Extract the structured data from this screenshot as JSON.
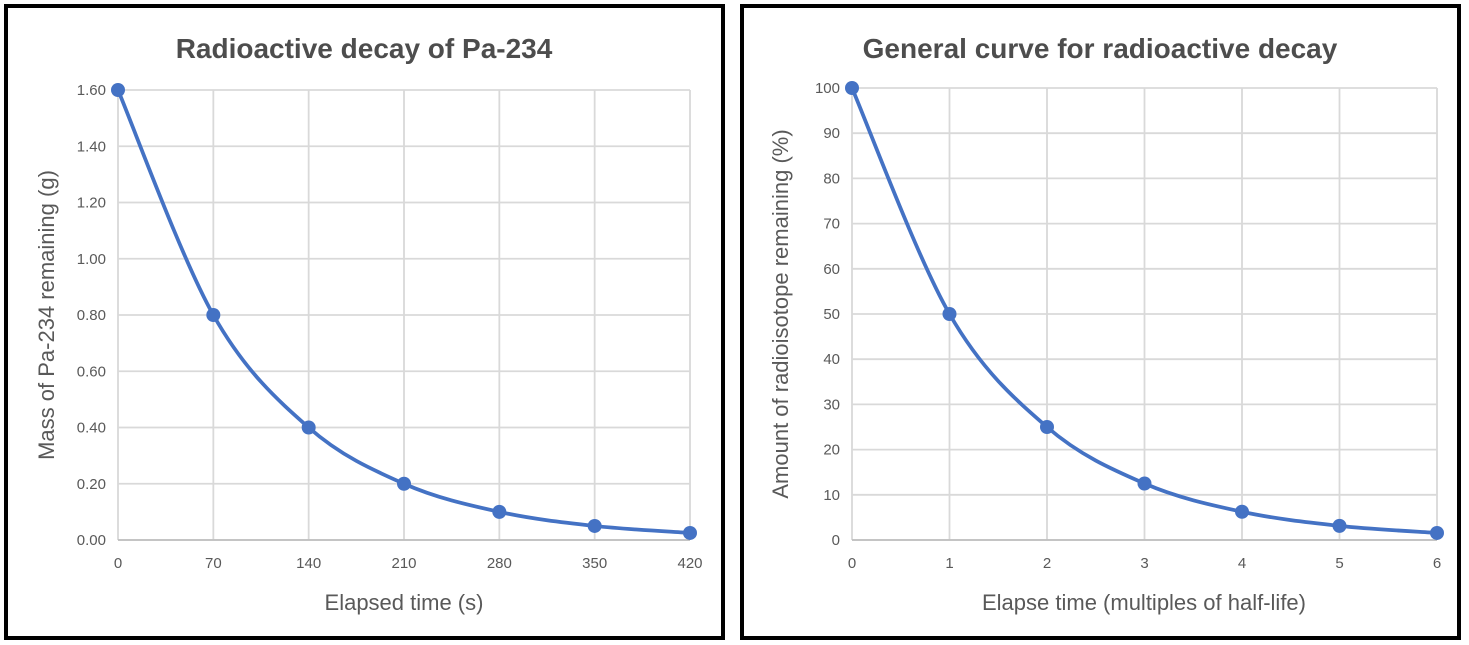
{
  "colors": {
    "line": "#4472C4",
    "marker": "#4472C4",
    "gridline": "#D9D9D9",
    "axis_line": "#BFBFBF",
    "tick_text": "#595959",
    "axis_label_text": "#595959",
    "title_text": "#4d4d4d",
    "panel_border": "#000000",
    "background": "#FFFFFF"
  },
  "chart_data": [
    {
      "type": "line",
      "title": "Radioactive decay of Pa-234",
      "xlabel": "Elapsed time (s)",
      "ylabel": "Mass of Pa-234 remaining (g)",
      "x": [
        0,
        70,
        140,
        210,
        280,
        350,
        420
      ],
      "y": [
        1.6,
        0.8,
        0.4,
        0.2,
        0.1,
        0.05,
        0.025
      ],
      "xlim": [
        0,
        420
      ],
      "ylim": [
        0,
        1.6
      ],
      "x_tick_values": [
        0,
        70,
        140,
        210,
        280,
        350,
        420
      ],
      "x_tick_labels": [
        "0",
        "70",
        "140",
        "210",
        "280",
        "350",
        "420"
      ],
      "y_tick_values": [
        0,
        0.2,
        0.4,
        0.6,
        0.8,
        1.0,
        1.2,
        1.4,
        1.6
      ],
      "y_tick_labels": [
        "0.00",
        "0.20",
        "0.40",
        "0.60",
        "0.80",
        "1.00",
        "1.20",
        "1.40",
        "1.60"
      ],
      "grid": true,
      "legend": null,
      "smooth": true,
      "marker": "circle"
    },
    {
      "type": "line",
      "title": "General curve for radioactive decay",
      "xlabel": "Elapse time (multiples of half-life)",
      "ylabel": "Amount of radioisotope remaining (%)",
      "x": [
        0,
        1,
        2,
        3,
        4,
        5,
        6
      ],
      "y": [
        100,
        50,
        25,
        12.5,
        6.25,
        3.125,
        1.5625
      ],
      "xlim": [
        0,
        6
      ],
      "ylim": [
        0,
        100
      ],
      "x_tick_values": [
        0,
        1,
        2,
        3,
        4,
        5,
        6
      ],
      "x_tick_labels": [
        "0",
        "1",
        "2",
        "3",
        "4",
        "5",
        "6"
      ],
      "y_tick_values": [
        0,
        10,
        20,
        30,
        40,
        50,
        60,
        70,
        80,
        90,
        100
      ],
      "y_tick_labels": [
        "0",
        "10",
        "20",
        "30",
        "40",
        "50",
        "60",
        "70",
        "80",
        "90",
        "100"
      ],
      "grid": true,
      "legend": null,
      "smooth": true,
      "marker": "circle"
    }
  ]
}
